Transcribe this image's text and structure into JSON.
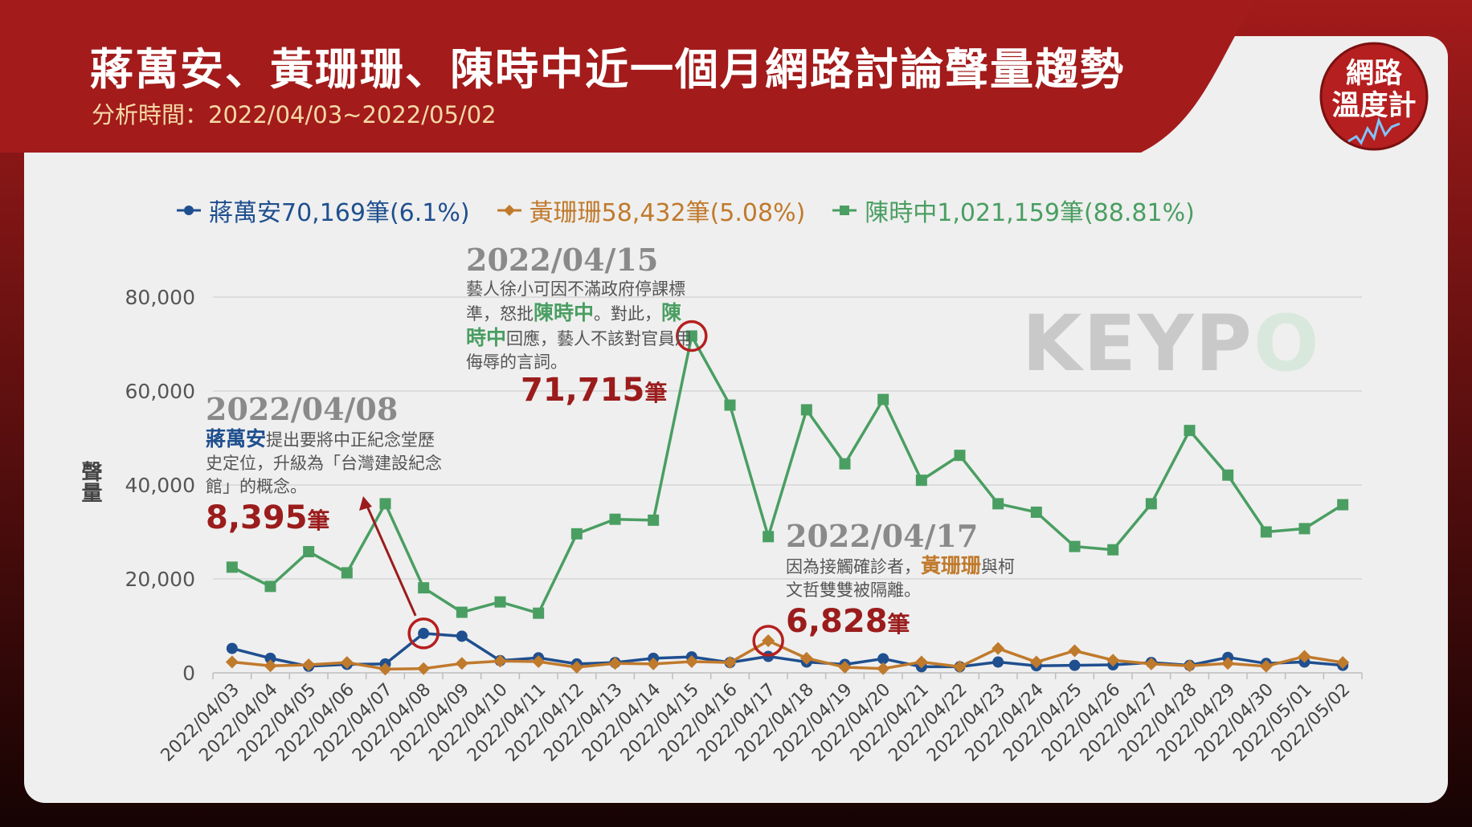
{
  "header": {
    "title": "蔣萬安、黃珊珊、陳時中近一個月網路討論聲量趨勢",
    "subtitle": "分析時間：2022/04/03~2022/05/02"
  },
  "logo": {
    "line1": "網路",
    "line2": "溫度計"
  },
  "watermark": {
    "part1": "KEYP",
    "part2": "O"
  },
  "colors": {
    "blue": "#1f4f8f",
    "orange": "#c07a2c",
    "green": "#4a9e62",
    "header_red": "#a31b1b",
    "highlight": "#b51f1f"
  },
  "legend": [
    {
      "name": "蔣萬安",
      "stat": " 70,169筆(6.1%)",
      "color": "#1f4f8f",
      "marker": "circle"
    },
    {
      "name": "黃珊珊",
      "stat": " 58,432筆(5.08%)",
      "color": "#c07a2c",
      "marker": "diamond"
    },
    {
      "name": "陳時中",
      "stat": " 1,021,159筆(88.81%)",
      "color": "#4a9e62",
      "marker": "square"
    }
  ],
  "annotations": {
    "a1": {
      "date": "2022/04/15",
      "pre": "藝人徐小可因不滿政府停課標準，怒批",
      "name1": "陳時中",
      "mid": "。對此，",
      "name2": "陳時中",
      "post": "回應，藝人不該對官員用侮辱的言詞。",
      "count": "71,715",
      "unit": "筆"
    },
    "a2": {
      "date": "2022/04/08",
      "name": "蔣萬安",
      "text": "提出要將中正紀念堂歷史定位，升級為「台灣建設紀念館」的概念。",
      "count": "8,395",
      "unit": "筆"
    },
    "a3": {
      "date": "2022/04/17",
      "text": "因為接觸確診者，",
      "name": "黃珊珊",
      "post": "與柯文哲雙雙被隔離。",
      "count": "6,828",
      "unit": "筆"
    }
  },
  "chart_data": {
    "type": "line",
    "ylabel": "聲量",
    "ylim": [
      0,
      80000
    ],
    "yticks": [
      0,
      20000,
      40000,
      60000,
      80000
    ],
    "ytick_labels": [
      "0",
      "20,000",
      "40,000",
      "60,000",
      "80,000"
    ],
    "grid": true,
    "legend_position": "top",
    "categories": [
      "2022/04/03",
      "2022/04/04",
      "2022/04/05",
      "2022/04/06",
      "2022/04/07",
      "2022/04/08",
      "2022/04/09",
      "2022/04/10",
      "2022/04/11",
      "2022/04/12",
      "2022/04/13",
      "2022/04/14",
      "2022/04/15",
      "2022/04/16",
      "2022/04/17",
      "2022/04/18",
      "2022/04/19",
      "2022/04/20",
      "2022/04/21",
      "2022/04/22",
      "2022/04/23",
      "2022/04/24",
      "2022/04/25",
      "2022/04/26",
      "2022/04/27",
      "2022/04/28",
      "2022/04/29",
      "2022/04/30",
      "2022/05/01",
      "2022/05/02"
    ],
    "series": [
      {
        "name": "蔣萬安",
        "color": "#1f4f8f",
        "marker": "circle",
        "values": [
          5200,
          3100,
          1400,
          1800,
          1900,
          8395,
          7800,
          2600,
          3200,
          1900,
          2200,
          3100,
          3400,
          2200,
          3500,
          2300,
          1800,
          3000,
          1300,
          1300,
          2300,
          1500,
          1600,
          1700,
          2200,
          1600,
          3300,
          2000,
          2300,
          1600
        ]
      },
      {
        "name": "黃珊珊",
        "color": "#c07a2c",
        "marker": "diamond",
        "values": [
          2300,
          1500,
          1700,
          2200,
          800,
          900,
          2000,
          2500,
          2400,
          1200,
          2000,
          1900,
          2400,
          2200,
          6828,
          3100,
          1200,
          900,
          2300,
          1300,
          5200,
          2300,
          4700,
          2700,
          1900,
          1500,
          2000,
          1400,
          3500,
          2200
        ]
      },
      {
        "name": "陳時中",
        "color": "#4a9e62",
        "marker": "square",
        "values": [
          22500,
          18400,
          25800,
          21300,
          36000,
          18100,
          12900,
          15100,
          12700,
          29600,
          32700,
          32500,
          71715,
          57000,
          29000,
          56000,
          44500,
          58200,
          41000,
          46300,
          36000,
          34200,
          26900,
          26200,
          36000,
          51600,
          42100,
          30000,
          30700,
          35800
        ]
      }
    ]
  }
}
